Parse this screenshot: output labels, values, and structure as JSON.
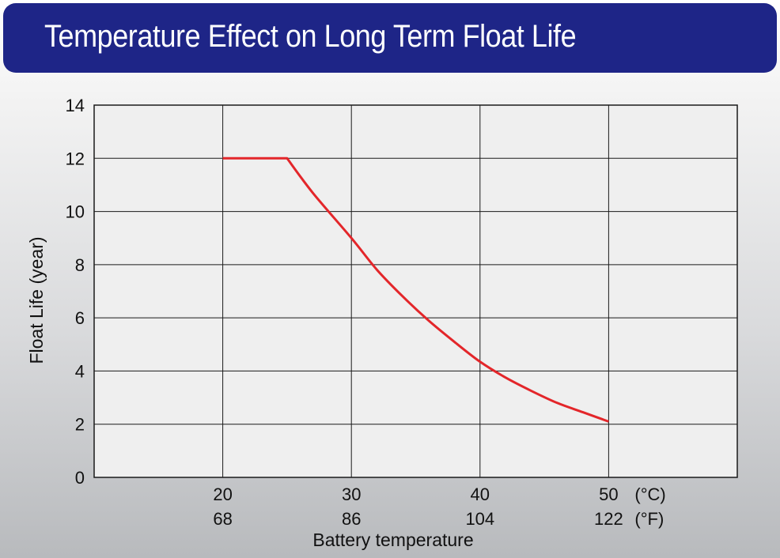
{
  "title": "Temperature Effect on Long Term Float Life",
  "chart_data": {
    "type": "line",
    "title": "Temperature Effect on Long Term Float Life",
    "xlabel": "Battery temperature",
    "ylabel": "Float Life (year)",
    "xlim": [
      10,
      60
    ],
    "ylim": [
      0,
      14
    ],
    "y_ticks": [
      "0",
      "2",
      "4",
      "6",
      "8",
      "10",
      "12",
      "14"
    ],
    "x_ticks_c": [
      "20",
      "30",
      "40",
      "50"
    ],
    "x_ticks_f": [
      "68",
      "86",
      "104",
      "122"
    ],
    "x_tick_values": [
      20,
      30,
      40,
      50
    ],
    "unit_c": "(°C)",
    "unit_f": "(°F)",
    "grid": true,
    "line_color": "#e3262a",
    "series": [
      {
        "x": [
          20,
          25,
          27,
          30,
          32,
          34,
          36,
          38,
          40,
          42,
          44,
          46,
          48,
          50
        ],
        "y": [
          12,
          12,
          10.7,
          9.0,
          7.8,
          6.8,
          5.9,
          5.1,
          4.35,
          3.75,
          3.25,
          2.8,
          2.45,
          2.1
        ]
      }
    ]
  }
}
